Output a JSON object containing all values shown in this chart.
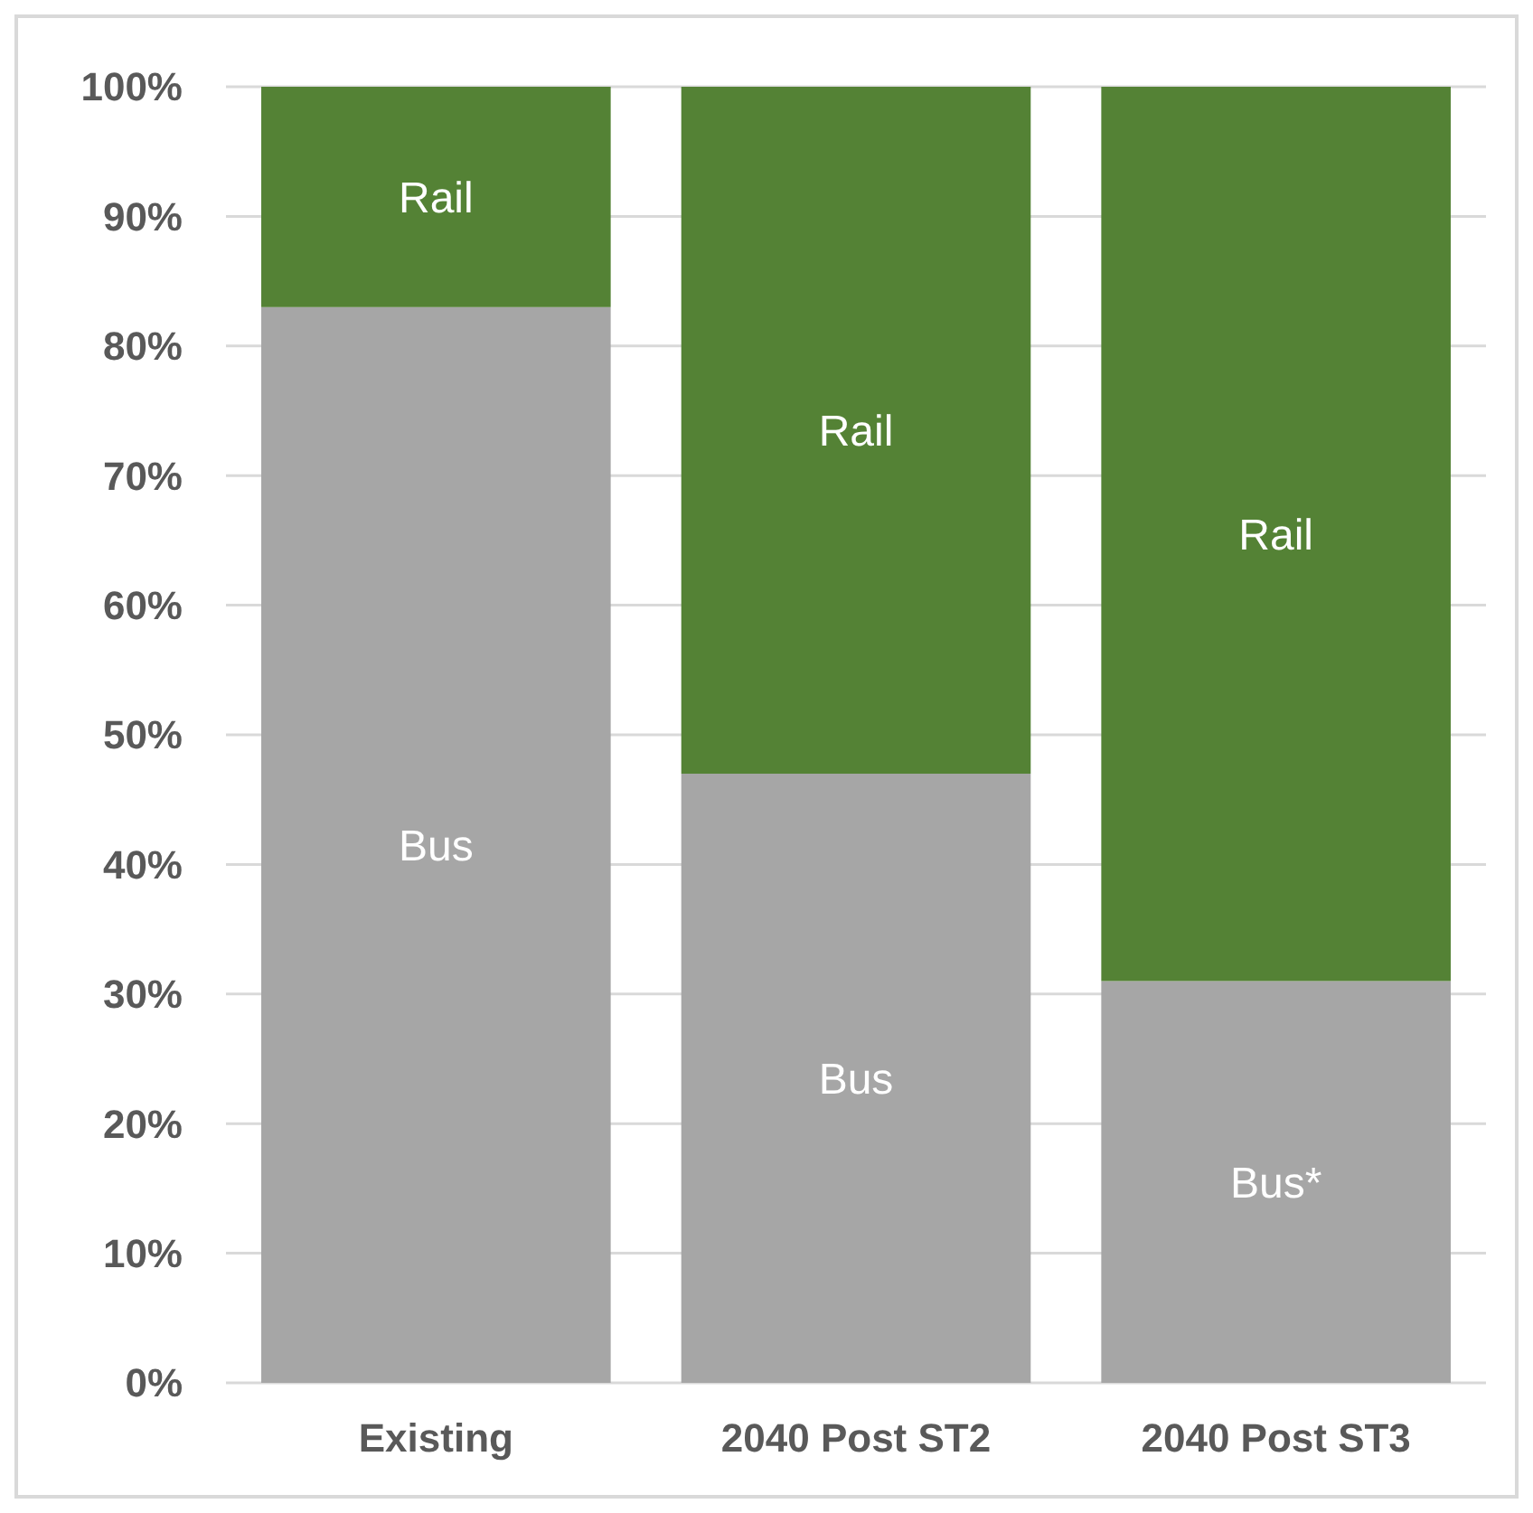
{
  "chart_data": {
    "type": "bar",
    "stacked": true,
    "categories": [
      "Existing",
      "2040 Post ST2",
      "2040 Post ST3"
    ],
    "series": [
      {
        "color": "#a6a6a6",
        "values": [
          83,
          47,
          31
        ],
        "value_labels": [
          "Bus",
          "Bus",
          "Bus*"
        ]
      },
      {
        "color": "#548235",
        "values": [
          17,
          53,
          69
        ],
        "value_labels": [
          "Rail",
          "Rail",
          "Rail"
        ]
      }
    ],
    "ylim": [
      0,
      100
    ],
    "yticks": [
      {
        "value": 0,
        "label": "0%"
      },
      {
        "value": 10,
        "label": "10%"
      },
      {
        "value": 20,
        "label": "20%"
      },
      {
        "value": 30,
        "label": "30%"
      },
      {
        "value": 40,
        "label": "40%"
      },
      {
        "value": 50,
        "label": "50%"
      },
      {
        "value": 60,
        "label": "60%"
      },
      {
        "value": 70,
        "label": "70%"
      },
      {
        "value": 80,
        "label": "80%"
      },
      {
        "value": 90,
        "label": "90%"
      },
      {
        "value": 100,
        "label": "100%"
      }
    ],
    "grid": "y"
  }
}
